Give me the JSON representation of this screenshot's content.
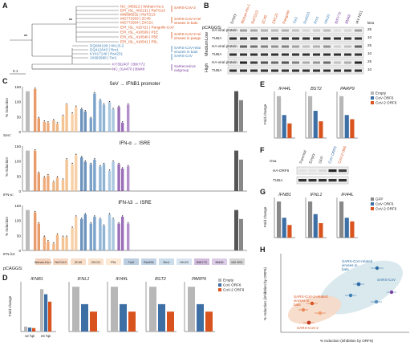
{
  "panels": {
    "A": {
      "label": "A",
      "scale_bar": "0.1",
      "bootstrap": "**",
      "tree_leaves": [
        {
          "name": "NC_045512 | Wuhan-Hu-1",
          "color": "#d9531e"
        },
        {
          "name": "EPI_ISL_402131 | RaTG13",
          "color": "#d9531e"
        },
        {
          "name": "MN996532 | RaTG13",
          "color": "#d9531e"
        },
        {
          "name": "MG772933 | ZC45",
          "color": "#d9531e"
        },
        {
          "name": "MG772934 | ZXC21",
          "color": "#d9531e"
        },
        {
          "name": "EPI_ISL_410721 | Pangolin-CoV",
          "color": "#d9531e"
        },
        {
          "name": "EPI_ISL_410539 | P1E",
          "color": "#d9531e"
        },
        {
          "name": "EPI_ISL_410540 | P5E",
          "color": "#d9531e"
        },
        {
          "name": "EPI_ISL_410541 | P5L",
          "color": "#d9531e"
        },
        {
          "name": "DQ084199 | HKU3-2",
          "color": "#3d7fb5"
        },
        {
          "name": "DQ412043 | Rm1",
          "color": "#3d7fb5"
        },
        {
          "name": "KY417146 | Rs4231",
          "color": "#3d7fb5"
        },
        {
          "name": "JX993988 | Tor2",
          "color": "#3d7fb5"
        },
        {
          "name": "KY352407 | BtKY72",
          "color": "#7a3fa0"
        },
        {
          "name": "NC_014470 | BM48",
          "color": "#7a3fa0"
        }
      ],
      "groups": [
        {
          "name": "SARS-CoV-2",
          "color": "#d9531e"
        },
        {
          "name": "SARS-CoV-2-related viruses in bats",
          "color": "#d9531e"
        },
        {
          "name": "SARS-CoV-2-related viruses in pangolins",
          "color": "#d9531e"
        },
        {
          "name": "SARS-CoV-related viruses in bats",
          "color": "#3d7fb5"
        },
        {
          "name": "SARS-CoV",
          "color": "#3d7fb5"
        },
        {
          "name": "Sarbecovirus outgroup",
          "color": "#7a3fa0"
        }
      ]
    },
    "B": {
      "label": "B",
      "construct": "pCAGGS:",
      "lanes": [
        "Empty",
        "Wuhan-Hu-1",
        "RaTG13",
        "ZC45",
        "ZXC21",
        "Pangolin",
        "Tor2",
        "Rs4231",
        "Rm1",
        "HKU3",
        "BtKY72",
        "BM48",
        "IAV NS1"
      ],
      "rows": [
        {
          "exposure": "Low",
          "bands": [
            "HA-viral protein",
            "TUBA"
          ]
        },
        {
          "exposure": "Medium",
          "bands": [
            "HA-viral protein",
            "TUBA"
          ]
        },
        {
          "exposure": "High",
          "bands": [
            "HA-viral protein",
            "TUBA"
          ]
        }
      ],
      "kda": [
        "kDa",
        "25",
        "10",
        "25",
        "10",
        "25",
        "10"
      ]
    },
    "C": {
      "label": "C",
      "subplots": [
        {
          "title": "SeV → IFNB1 promoter",
          "treatment": "SeV:"
        },
        {
          "title": "IFN-α → ISRE",
          "treatment": "IFN-α:"
        },
        {
          "title": "IFN-λ3 → ISRE",
          "treatment": "IFN-λ3:"
        }
      ],
      "ylabel": "% Induction",
      "x_groups": [
        "Wuhan-Hu-1",
        "RaTG13",
        "ZC45",
        "ZXC21",
        "P5L",
        "Tor2",
        "Rs4231",
        "Rm1",
        "HKU3",
        "BtKY72",
        "BM48",
        "IAV NS1"
      ],
      "construct": "pCAGGS:"
    },
    "D": {
      "label": "D",
      "legend": [
        "Empty",
        "CoV ORF6",
        "CoV-2 ORF6"
      ],
      "genes": [
        "IFNB1",
        "IFNL1",
        "IFI44L",
        "BST2",
        "PARP9"
      ],
      "ylabel": "Fold change",
      "xlabels": [
        "12 hpi",
        "24 hpi"
      ]
    },
    "E": {
      "label": "E",
      "genes": [
        "IFI44L",
        "BST2",
        "PARP9"
      ],
      "legend": [
        "Empty",
        "CoV ORF6",
        "CoV-2 ORF6"
      ],
      "ylabel": "Fold change"
    },
    "F": {
      "label": "F",
      "lanes": [
        "Parental",
        "Empty",
        "GFP",
        "CoV ORF6",
        "CoV-2 ORF6"
      ],
      "bands": [
        "HA-ORF6",
        "TUBA"
      ],
      "ox": "Oxa"
    },
    "G": {
      "label": "G",
      "genes": [
        "IFNB1",
        "IFNL1",
        "IFI44L"
      ],
      "legend": [
        "GFP",
        "CoV ORF6",
        "CoV-2 ORF6"
      ],
      "ylabel": "Fold change"
    },
    "H": {
      "label": "H",
      "ylabel": "% Induction (inhibition by ORF6)",
      "xlabel": "% Induction (inhibition by ORF6)",
      "clusters": [
        {
          "name": "SARS-CoV-related viruses in bats",
          "color": "#2e6ea6"
        },
        {
          "name": "SARS-CoV",
          "color": "#2e6ea6"
        },
        {
          "name": "SARS-CoV-2-related viruses in bats",
          "color": "#d9531e"
        },
        {
          "name": "SARS-CoV-2",
          "color": "#d9531e"
        }
      ]
    }
  },
  "colors": {
    "orange": "#d9531e",
    "blue": "#3d7fb5",
    "purple": "#7a3fa0",
    "grey": "#9a9a9a"
  }
}
